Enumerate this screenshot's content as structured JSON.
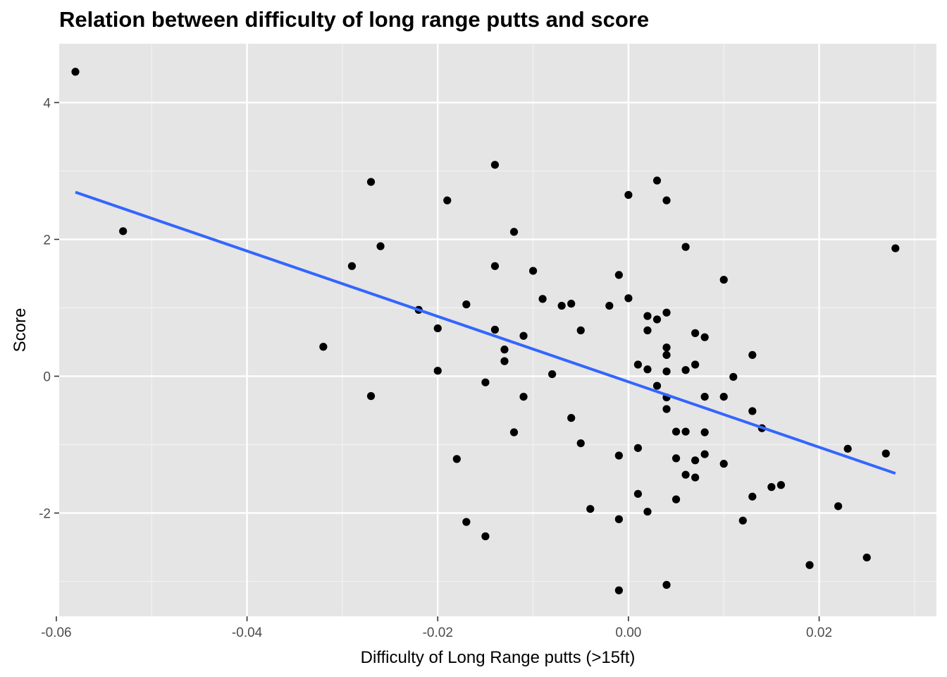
{
  "chart_data": {
    "type": "scatter",
    "title": "Relation between difficulty of long range putts and score",
    "xlabel": "Difficulty of Long Range putts (>15ft)",
    "ylabel": "Score",
    "xlim": [
      -0.0597,
      0.0323
    ],
    "ylim": [
      -3.51,
      4.86
    ],
    "x_ticks": [
      -0.06,
      -0.04,
      -0.02,
      0.0,
      0.02
    ],
    "x_tick_labels": [
      "-0.06",
      "-0.04",
      "-0.02",
      "0.00",
      "0.02"
    ],
    "y_ticks": [
      -2,
      0,
      2,
      4
    ],
    "y_tick_labels": [
      "-2",
      "0",
      "2",
      "4"
    ],
    "grid": true,
    "legend": "none",
    "points": [
      [
        -0.058,
        4.45
      ],
      [
        -0.053,
        2.12
      ],
      [
        -0.032,
        0.43
      ],
      [
        -0.029,
        1.61
      ],
      [
        -0.027,
        2.84
      ],
      [
        -0.027,
        -0.29
      ],
      [
        -0.026,
        1.9
      ],
      [
        -0.022,
        0.97
      ],
      [
        -0.02,
        0.7
      ],
      [
        -0.02,
        0.08
      ],
      [
        -0.019,
        2.57
      ],
      [
        -0.018,
        -1.21
      ],
      [
        -0.017,
        1.05
      ],
      [
        -0.017,
        -2.13
      ],
      [
        -0.015,
        -0.09
      ],
      [
        -0.015,
        -2.34
      ],
      [
        -0.014,
        3.09
      ],
      [
        -0.014,
        1.61
      ],
      [
        -0.014,
        0.68
      ],
      [
        -0.013,
        0.39
      ],
      [
        -0.013,
        0.22
      ],
      [
        -0.012,
        2.11
      ],
      [
        -0.012,
        -0.82
      ],
      [
        -0.011,
        0.59
      ],
      [
        -0.011,
        -0.3
      ],
      [
        -0.01,
        1.54
      ],
      [
        -0.009,
        1.13
      ],
      [
        -0.008,
        0.03
      ],
      [
        -0.007,
        1.03
      ],
      [
        -0.006,
        1.06
      ],
      [
        -0.006,
        -0.61
      ],
      [
        -0.005,
        0.67
      ],
      [
        -0.005,
        -0.98
      ],
      [
        -0.004,
        -1.94
      ],
      [
        -0.002,
        1.03
      ],
      [
        -0.001,
        1.48
      ],
      [
        -0.001,
        -1.16
      ],
      [
        -0.001,
        -2.09
      ],
      [
        -0.001,
        -3.13
      ],
      [
        0.0,
        2.65
      ],
      [
        0.0,
        1.14
      ],
      [
        0.001,
        0.17
      ],
      [
        0.001,
        -1.05
      ],
      [
        0.001,
        -1.72
      ],
      [
        0.002,
        0.88
      ],
      [
        0.002,
        0.67
      ],
      [
        0.002,
        0.1
      ],
      [
        0.002,
        -1.98
      ],
      [
        0.003,
        2.86
      ],
      [
        0.003,
        0.83
      ],
      [
        0.003,
        -0.14
      ],
      [
        0.004,
        2.57
      ],
      [
        0.004,
        0.93
      ],
      [
        0.004,
        0.42
      ],
      [
        0.004,
        0.31
      ],
      [
        0.004,
        0.07
      ],
      [
        0.004,
        -0.31
      ],
      [
        0.004,
        -0.48
      ],
      [
        0.004,
        -3.05
      ],
      [
        0.005,
        -0.81
      ],
      [
        0.005,
        -1.2
      ],
      [
        0.005,
        -1.8
      ],
      [
        0.006,
        1.89
      ],
      [
        0.006,
        0.09
      ],
      [
        0.006,
        -0.81
      ],
      [
        0.006,
        -1.44
      ],
      [
        0.007,
        0.63
      ],
      [
        0.007,
        0.17
      ],
      [
        0.007,
        -1.23
      ],
      [
        0.007,
        -1.48
      ],
      [
        0.008,
        0.57
      ],
      [
        0.008,
        -0.3
      ],
      [
        0.008,
        -0.82
      ],
      [
        0.008,
        -1.14
      ],
      [
        0.01,
        1.41
      ],
      [
        0.01,
        -0.3
      ],
      [
        0.01,
        -1.28
      ],
      [
        0.011,
        -0.01
      ],
      [
        0.012,
        -2.11
      ],
      [
        0.013,
        0.31
      ],
      [
        0.013,
        -0.51
      ],
      [
        0.013,
        -1.76
      ],
      [
        0.014,
        -0.76
      ],
      [
        0.015,
        -1.62
      ],
      [
        0.016,
        -1.59
      ],
      [
        0.019,
        -2.76
      ],
      [
        0.022,
        -1.9
      ],
      [
        0.023,
        -1.06
      ],
      [
        0.025,
        -2.65
      ],
      [
        0.027,
        -1.13
      ],
      [
        0.028,
        1.87
      ]
    ],
    "trend_line": {
      "method": "linear",
      "x": [
        -0.058,
        0.028
      ],
      "y": [
        2.69,
        -1.42
      ],
      "color": "#3366FF"
    }
  }
}
